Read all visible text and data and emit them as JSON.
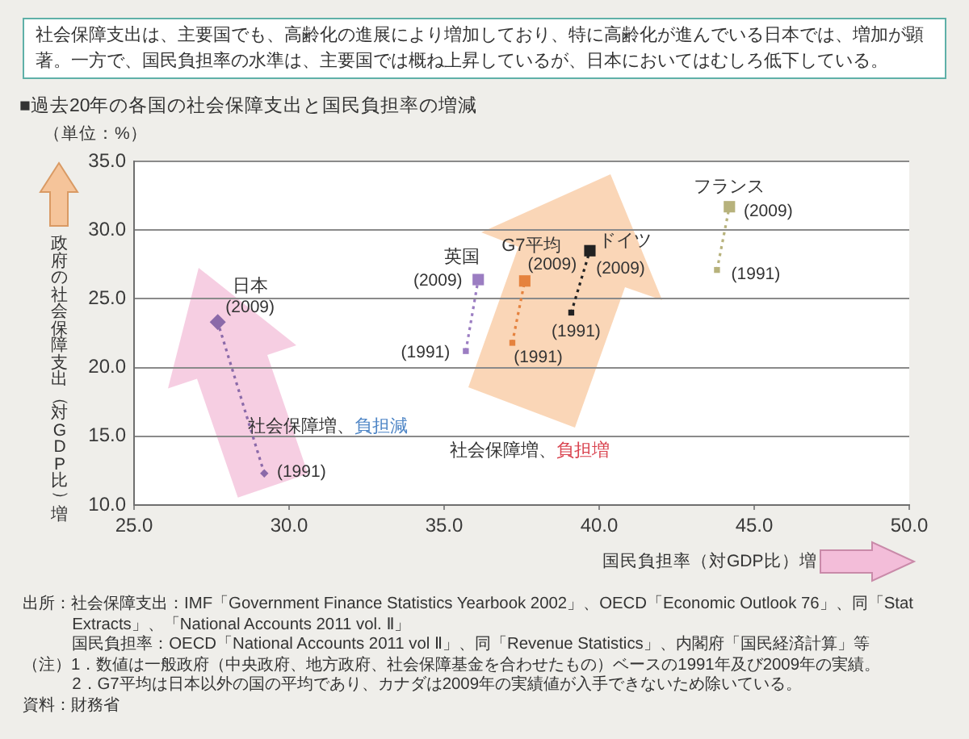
{
  "chart_data": {
    "type": "line",
    "subtitle": "社会保障支出は、主要国でも、高齢化の進展により増加しており、特に高齢化が進んでいる日本では、増加が顕著。一方で、国民負担率の水準は、主要国では概ね上昇しているが、日本においてはむしろ低下している。",
    "title": "■過去20年の各国の社会保障支出と国民負担率の増減",
    "xlabel": "国民負担率（対GDP比）増",
    "ylabel": "政府の社会保障支出（対GDP比）増",
    "xlim": [
      25,
      50
    ],
    "xticks": [
      {
        "value": 25,
        "label": "25.0"
      },
      {
        "value": 30,
        "label": "30.0"
      },
      {
        "value": 35,
        "label": "35.0"
      },
      {
        "value": 40,
        "label": "40.0"
      },
      {
        "value": 45,
        "label": "45.0"
      },
      {
        "value": 50,
        "label": "50.0"
      }
    ],
    "ylim": [
      10,
      35
    ],
    "yticks": [
      {
        "value": 10,
        "label": "10.0"
      },
      {
        "value": 15,
        "label": "15.0"
      },
      {
        "value": 20,
        "label": "20.0"
      },
      {
        "value": 25,
        "label": "25.0"
      },
      {
        "value": 30,
        "label": "30.0"
      },
      {
        "value": 35,
        "label": "35.0"
      }
    ],
    "grid": "y",
    "marker": "square",
    "line_style": "dotted",
    "series": [
      {
        "name": "日本",
        "color": "#8b6aa9",
        "marker": "diamond",
        "x": [
          29.2,
          27.7
        ],
        "values": [
          12.3,
          23.3
        ]
      },
      {
        "name": "英国",
        "color": "#9b7dc2",
        "x": [
          35.7,
          36.1
        ],
        "values": [
          21.2,
          26.4
        ]
      },
      {
        "name": "G7平均",
        "color": "#e5823e",
        "x": [
          37.2,
          37.6
        ],
        "values": [
          21.8,
          26.3
        ]
      },
      {
        "name": "ドイツ",
        "color": "#222222",
        "x": [
          39.1,
          39.7
        ],
        "values": [
          24.0,
          28.5
        ]
      },
      {
        "name": "フランス",
        "color": "#b7b27c",
        "x": [
          43.8,
          44.2
        ],
        "values": [
          27.1,
          31.7
        ]
      }
    ],
    "annotations": [
      "（単位：%）",
      "社会保障増、負担減",
      "社会保障増、負担増",
      "出所：社会保障支出：IMF「Government Finance Statistics Yearbook 2002」、OECD「Economic Outlook 76」、同「Stat Extracts」、「National Accounts 2011 vol. Ⅱ」",
      "国民負担率：OECD「National Accounts 2011 vol Ⅱ」、同「Revenue Statistics」、内閣府「国民経済計算」等",
      "（注）1．数値は一般政府（中央政府、地方政府、社会保障基金を合わせたもの）ベースの1991年及び2009年の実績。",
      "2．G7平均は日本以外の国の平均であり、カナダは2009年の実績値が入手できないため除いている。",
      "資料：財務省",
      {
        "text": "(2009)",
        "x": 27.7,
        "y": 23.3
      },
      {
        "text": "(1991)",
        "x": 29.2,
        "y": 12.3
      },
      {
        "text": "(2009)",
        "x": 36.1,
        "y": 26.4
      },
      {
        "text": "(1991)",
        "x": 35.7,
        "y": 21.2
      },
      {
        "text": "(2009)",
        "x": 37.6,
        "y": 26.3
      },
      {
        "text": "(1991)",
        "x": 37.2,
        "y": 21.8
      },
      {
        "text": "(2009)",
        "x": 39.7,
        "y": 28.5
      },
      {
        "text": "(1991)",
        "x": 39.1,
        "y": 24.0
      },
      {
        "text": "(2009)",
        "x": 44.2,
        "y": 31.7
      },
      {
        "text": "(1991)",
        "x": 43.8,
        "y": 27.1
      }
    ]
  }
}
